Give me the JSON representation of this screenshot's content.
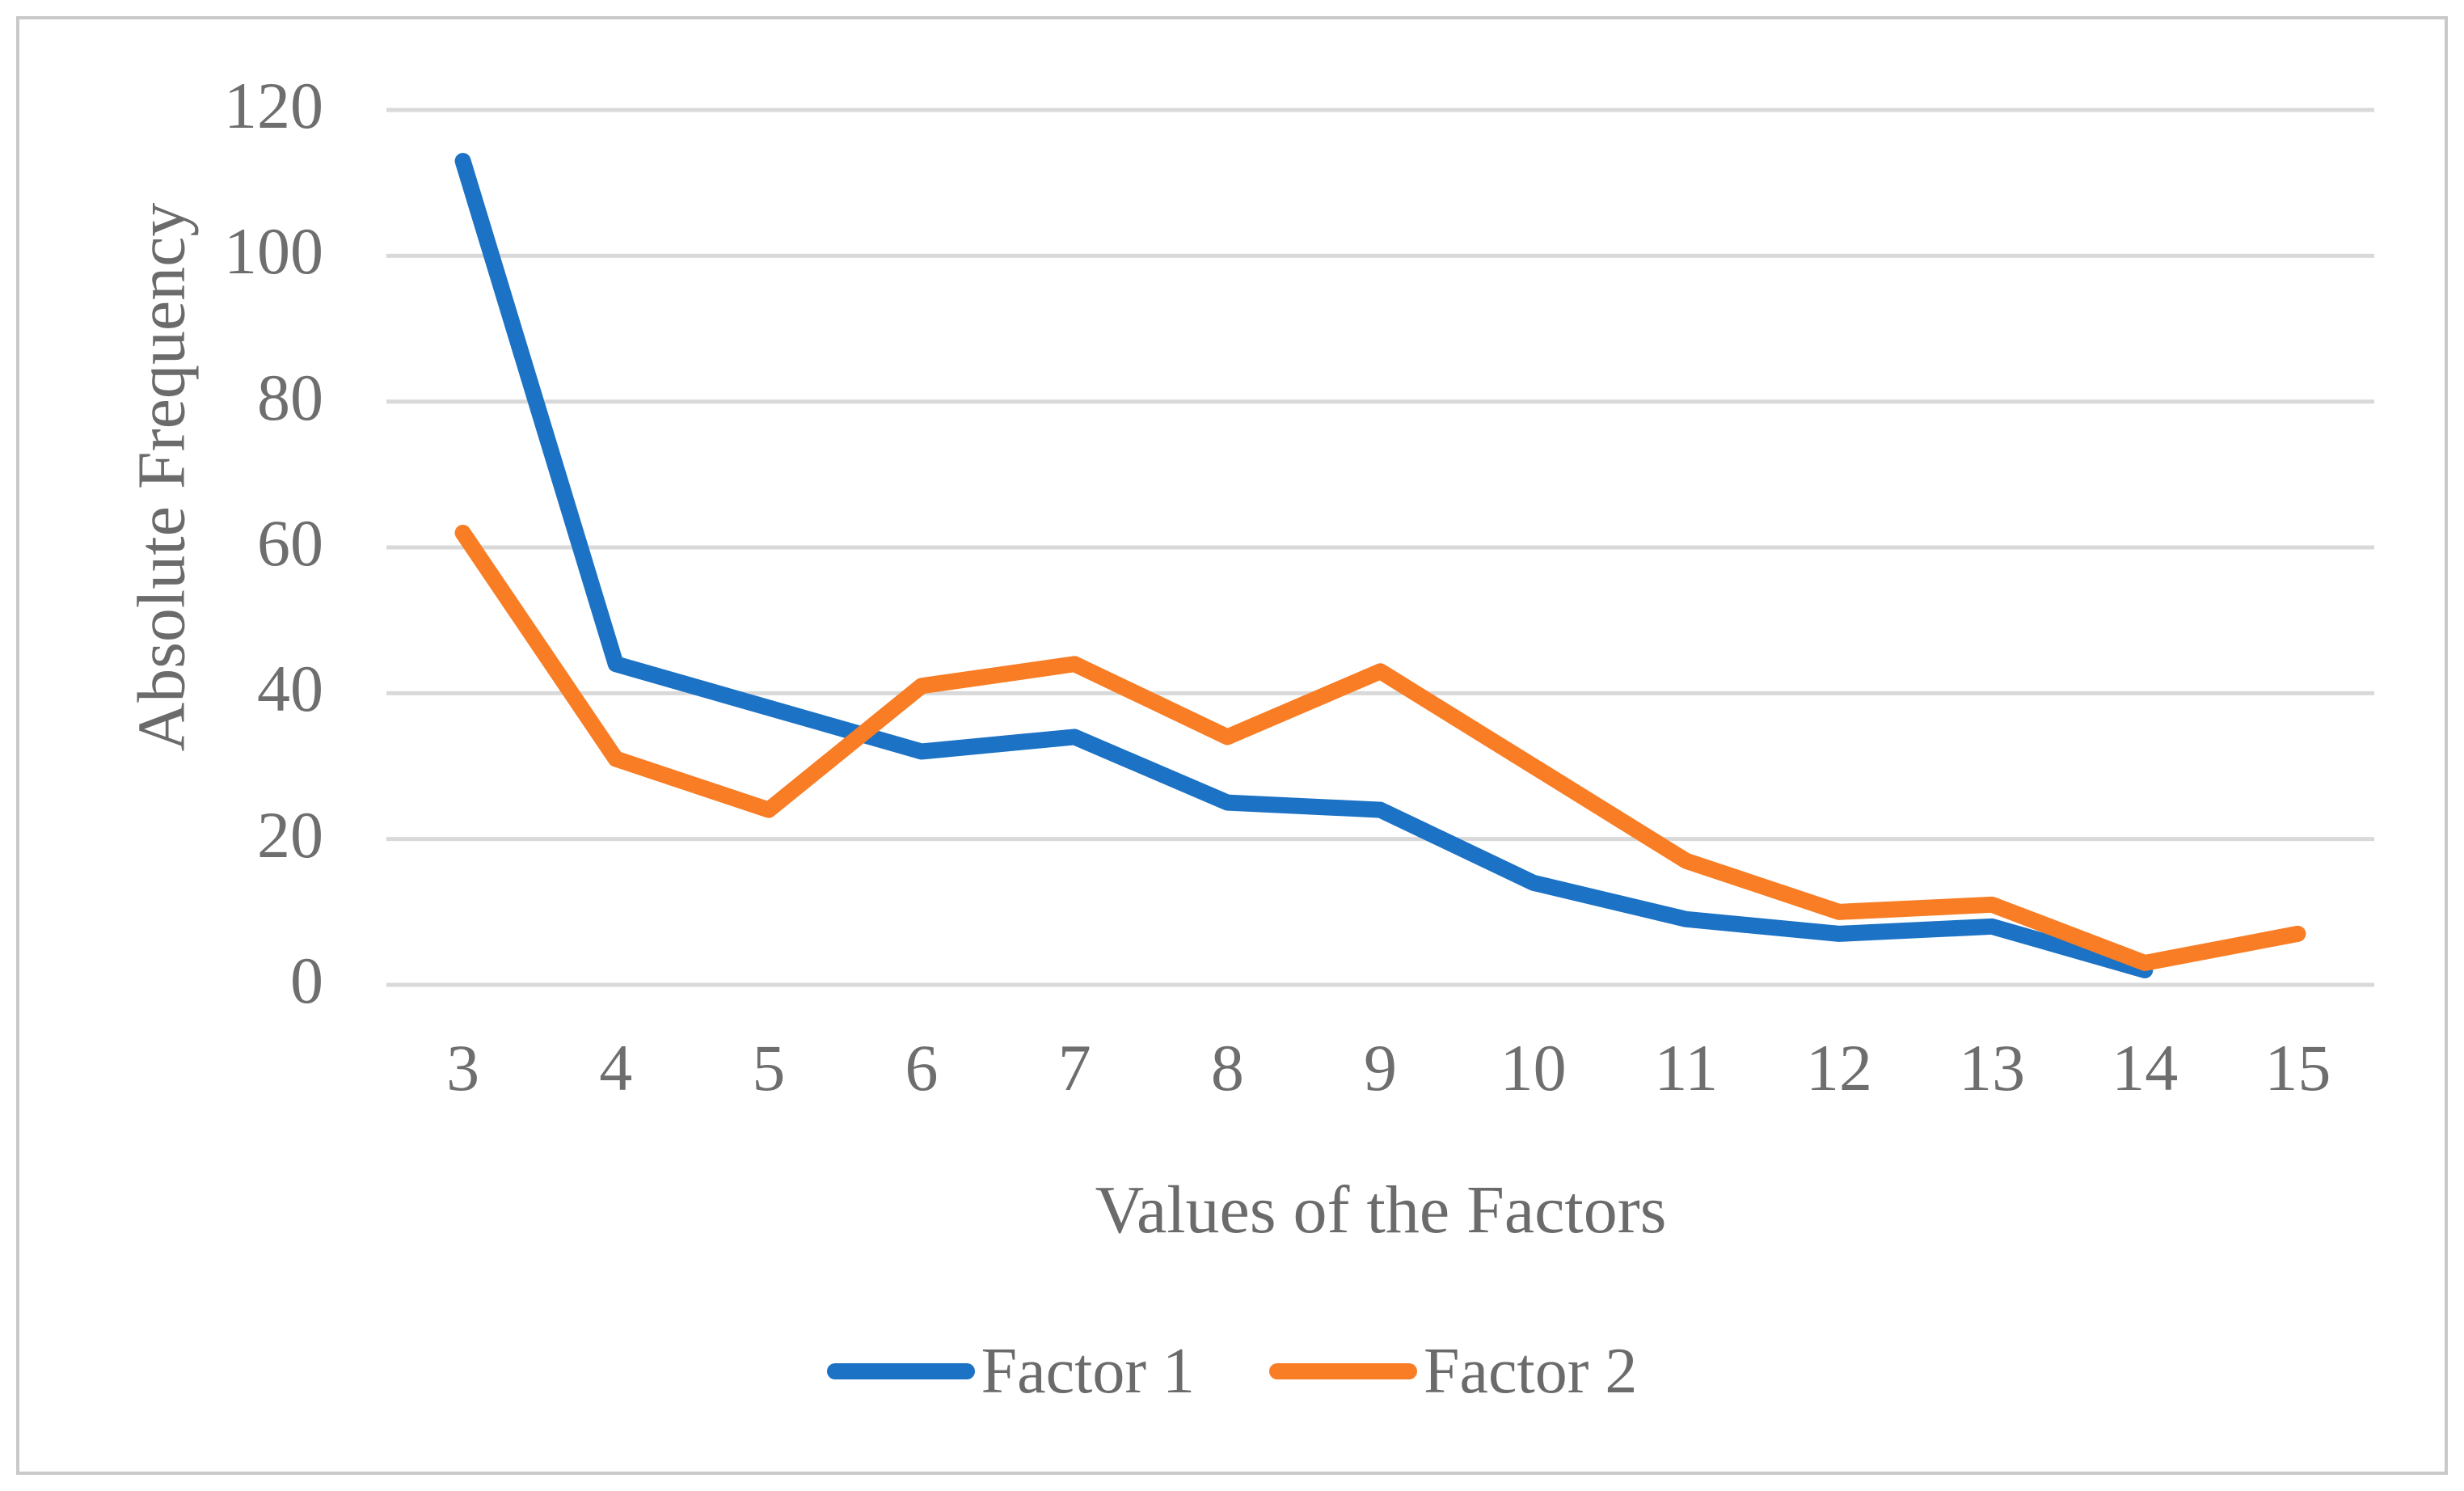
{
  "figure": {
    "background": "#ffffff",
    "border_color": "#c9c9c9"
  },
  "chart_data": {
    "type": "line",
    "title": "",
    "xlabel": "Values of the Factors",
    "ylabel": "Absolute Frequency",
    "categories": [
      3,
      4,
      5,
      6,
      7,
      8,
      9,
      10,
      11,
      12,
      13,
      14,
      15
    ],
    "series": [
      {
        "name": "Factor 1",
        "color": "#1c72c4",
        "values": [
          113,
          44,
          38,
          32,
          34,
          25,
          24,
          14,
          9,
          7,
          8,
          2,
          null
        ]
      },
      {
        "name": "Factor 2",
        "color": "#f87d25",
        "values": [
          62,
          31,
          24,
          41,
          44,
          34,
          43,
          30,
          17,
          10,
          11,
          3,
          7
        ]
      }
    ],
    "y_ticks": [
      0,
      20,
      40,
      60,
      80,
      100,
      120
    ],
    "ylim": [
      0,
      120
    ],
    "grid": "horizontal",
    "gridline_color": "#d9d9d9",
    "axis_text_color": "#6e6e6e",
    "legend_position": "bottom",
    "line_width": 20
  }
}
